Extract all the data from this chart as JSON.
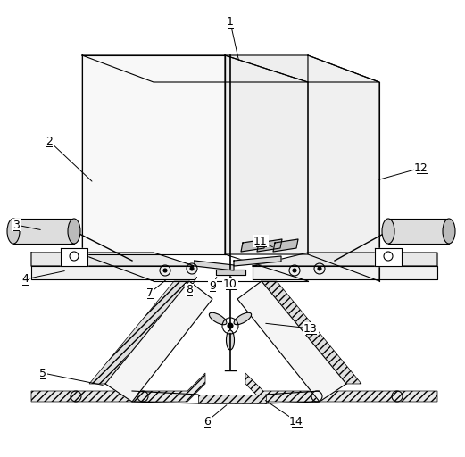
{
  "bg_color": "#ffffff",
  "line_color": "#000000",
  "label_color": "#000000",
  "labels_data": [
    [
      "1",
      258,
      25,
      268,
      70
    ],
    [
      "2",
      55,
      158,
      105,
      205
    ],
    [
      "3",
      18,
      252,
      48,
      258
    ],
    [
      "4",
      28,
      313,
      75,
      303
    ],
    [
      "5",
      48,
      418,
      118,
      432
    ],
    [
      "6",
      232,
      472,
      256,
      452
    ],
    [
      "7",
      168,
      328,
      188,
      312
    ],
    [
      "8",
      212,
      325,
      222,
      308
    ],
    [
      "9",
      238,
      320,
      244,
      308
    ],
    [
      "10",
      258,
      318,
      260,
      308
    ],
    [
      "11",
      292,
      270,
      308,
      278
    ],
    [
      "12",
      472,
      188,
      422,
      202
    ],
    [
      "13",
      348,
      368,
      295,
      362
    ],
    [
      "14",
      332,
      472,
      295,
      447
    ]
  ]
}
